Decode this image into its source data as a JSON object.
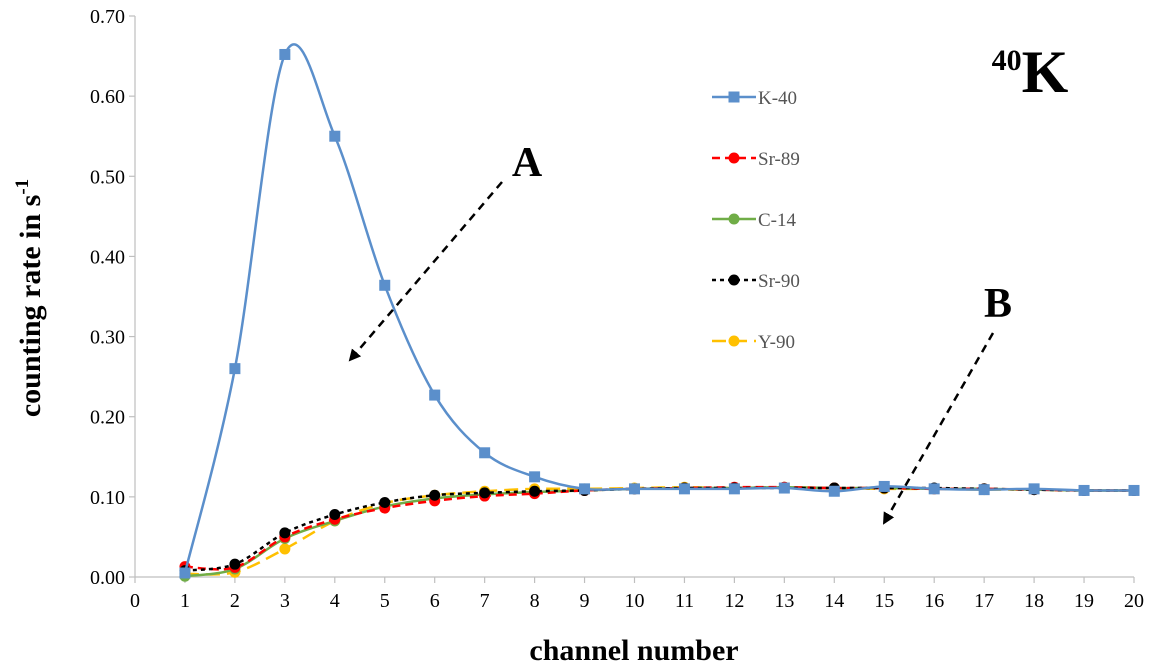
{
  "chart_data": {
    "type": "line",
    "title": "",
    "isotope_label": {
      "superscript": "40",
      "symbol": "K"
    },
    "xlabel": "channel number",
    "ylabel": {
      "main": "counting rate in s",
      "superscript": "-1"
    },
    "xlim": [
      0,
      20
    ],
    "ylim": [
      0,
      0.7
    ],
    "x_ticks": [
      "0",
      "1",
      "2",
      "3",
      "4",
      "5",
      "6",
      "7",
      "8",
      "9",
      "10",
      "11",
      "12",
      "13",
      "14",
      "15",
      "16",
      "17",
      "18",
      "19",
      "20"
    ],
    "y_ticks": [
      "0.00",
      "0.10",
      "0.20",
      "0.30",
      "0.40",
      "0.50",
      "0.60",
      "0.70"
    ],
    "grid": false,
    "legend_position": "upper-right",
    "x": [
      1,
      2,
      3,
      4,
      5,
      6,
      7,
      8,
      9,
      10,
      11,
      12,
      13,
      14,
      15,
      16,
      17,
      18,
      19,
      20
    ],
    "series": [
      {
        "name": "K-40",
        "color": "#5B8FCB",
        "marker": "square",
        "dash": "solid",
        "values": [
          0.005,
          0.26,
          0.652,
          0.55,
          0.364,
          0.227,
          0.155,
          0.125,
          0.11,
          0.11,
          0.11,
          0.11,
          0.111,
          0.107,
          0.113,
          0.11,
          0.109,
          0.11,
          0.108,
          0.108
        ]
      },
      {
        "name": "Sr-89",
        "color": "#FF0000",
        "marker": "circle",
        "dash": "dash",
        "values": [
          0.013,
          0.012,
          0.05,
          0.072,
          0.086,
          0.095,
          0.101,
          0.104,
          0.108,
          0.11,
          0.111,
          0.112,
          0.112,
          0.111,
          0.111,
          0.11,
          0.11,
          0.109,
          0.108,
          0.108
        ]
      },
      {
        "name": "C-14",
        "color": "#70AD47",
        "marker": "circle",
        "dash": "solid",
        "values": [
          0.001,
          0.01,
          0.048,
          0.07,
          0.088,
          0.098,
          0.103,
          0.106,
          0.108,
          0.11,
          0.111,
          0.111,
          0.112,
          0.111,
          0.111,
          0.11,
          0.11,
          0.109,
          0.108,
          0.108
        ]
      },
      {
        "name": "Sr-90",
        "color": "#000000",
        "marker": "circle",
        "dash": "shortdash",
        "values": [
          0.008,
          0.016,
          0.055,
          0.078,
          0.093,
          0.102,
          0.105,
          0.107,
          0.108,
          0.11,
          0.111,
          0.111,
          0.111,
          0.111,
          0.111,
          0.111,
          0.11,
          0.109,
          0.108,
          0.108
        ]
      },
      {
        "name": "Y-90",
        "color": "#FFC000",
        "marker": "circle",
        "dash": "longdash",
        "values": [
          0.004,
          0.006,
          0.035,
          0.07,
          0.092,
          0.102,
          0.107,
          0.11,
          0.11,
          0.111,
          0.112,
          0.111,
          0.112,
          0.111,
          0.11,
          0.11,
          0.109,
          0.109,
          0.108,
          0.108
        ]
      }
    ],
    "annotations": [
      {
        "label": "A"
      },
      {
        "label": "B"
      }
    ]
  }
}
